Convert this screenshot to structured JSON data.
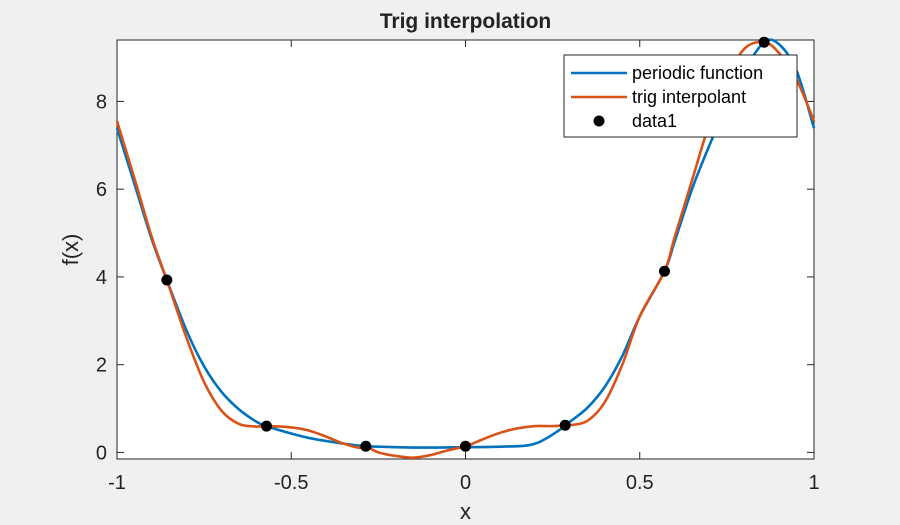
{
  "chart_data": {
    "type": "line",
    "title": "Trig interpolation",
    "xlabel": "x",
    "ylabel": "f(x)",
    "xlim": [
      -1,
      1
    ],
    "ylim": [
      -0.15,
      9.4
    ],
    "x_ticks": [
      -1,
      -0.5,
      0,
      0.5,
      1
    ],
    "x_tick_labels": [
      "-1",
      "-0.5",
      "0",
      "0.5",
      "1"
    ],
    "y_ticks": [
      0,
      2,
      4,
      6,
      8
    ],
    "y_tick_labels": [
      "0",
      "2",
      "4",
      "6",
      "8"
    ],
    "grid": false,
    "legend_position": "top-right",
    "series": [
      {
        "name": "periodic function",
        "color": "#0072BD",
        "kind": "line",
        "x": [
          -1.0,
          -0.95,
          -0.9,
          -0.857,
          -0.8,
          -0.75,
          -0.7,
          -0.65,
          -0.6,
          -0.571,
          -0.5,
          -0.45,
          -0.4,
          -0.35,
          -0.3,
          -0.286,
          -0.2,
          -0.1,
          0.0,
          0.1,
          0.2,
          0.286,
          0.3,
          0.35,
          0.4,
          0.45,
          0.5,
          0.571,
          0.6,
          0.65,
          0.7,
          0.75,
          0.8,
          0.857,
          0.9,
          0.95,
          1.0
        ],
        "y": [
          7.39,
          6.12,
          4.85,
          3.93,
          2.77,
          1.96,
          1.38,
          0.98,
          0.7,
          0.6,
          0.43,
          0.33,
          0.26,
          0.2,
          0.15,
          0.14,
          0.12,
          0.11,
          0.12,
          0.13,
          0.2,
          0.6,
          0.7,
          1.02,
          1.5,
          2.2,
          3.1,
          4.13,
          4.8,
          6.0,
          7.0,
          7.9,
          8.7,
          9.35,
          9.3,
          8.7,
          7.39
        ]
      },
      {
        "name": "trig interpolant",
        "color": "#D95319",
        "kind": "line",
        "x": [
          -1.0,
          -0.95,
          -0.9,
          -0.857,
          -0.8,
          -0.75,
          -0.7,
          -0.65,
          -0.6,
          -0.571,
          -0.5,
          -0.45,
          -0.4,
          -0.35,
          -0.3,
          -0.286,
          -0.25,
          -0.2,
          -0.15,
          -0.1,
          -0.05,
          0.0,
          0.05,
          0.1,
          0.15,
          0.2,
          0.25,
          0.286,
          0.3,
          0.35,
          0.4,
          0.45,
          0.5,
          0.571,
          0.6,
          0.65,
          0.7,
          0.75,
          0.8,
          0.857,
          0.9,
          0.95,
          1.0
        ],
        "y": [
          7.55,
          6.25,
          4.9,
          3.93,
          2.6,
          1.6,
          0.95,
          0.65,
          0.59,
          0.6,
          0.57,
          0.5,
          0.36,
          0.2,
          0.1,
          0.14,
          0.0,
          -0.08,
          -0.12,
          -0.06,
          0.05,
          0.14,
          0.3,
          0.45,
          0.55,
          0.6,
          0.6,
          0.62,
          0.62,
          0.72,
          1.15,
          2.0,
          3.1,
          4.13,
          4.9,
          6.2,
          7.5,
          8.5,
          9.2,
          9.35,
          9.1,
          8.5,
          7.55
        ]
      },
      {
        "name": "data1",
        "color": "#000000",
        "kind": "marker",
        "x": [
          -0.857,
          -0.571,
          -0.286,
          0.0,
          0.286,
          0.571,
          0.857
        ],
        "y": [
          3.93,
          0.6,
          0.14,
          0.14,
          0.62,
          4.13,
          9.35
        ]
      }
    ]
  }
}
